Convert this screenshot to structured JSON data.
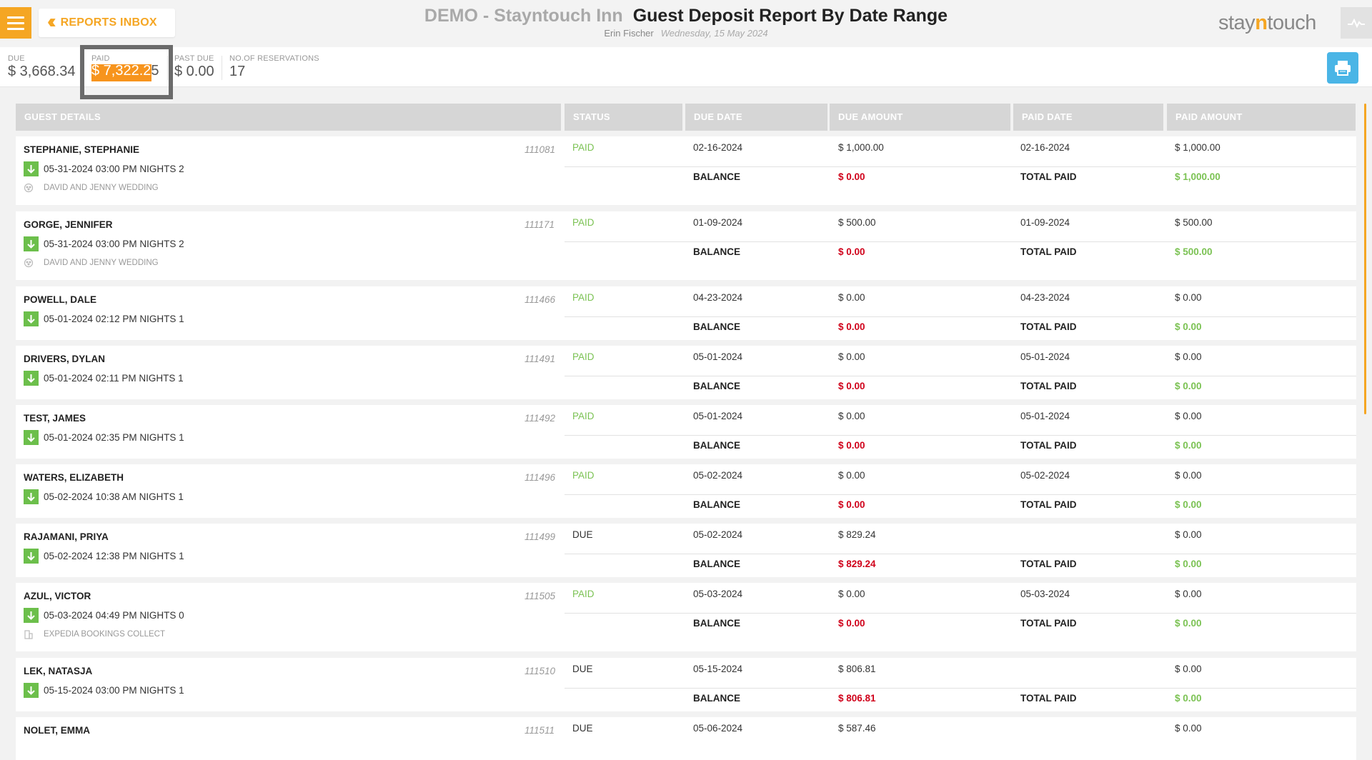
{
  "header": {
    "inbox_label": "REPORTS INBOX",
    "hotel_name": "DEMO - Stayntouch Inn",
    "report_title": "Guest Deposit Report By Date Range",
    "user": "Erin Fischer",
    "date": "Wednesday, 15 May 2024",
    "logo_a": "stay",
    "logo_b": "n",
    "logo_c": "touch"
  },
  "summary": {
    "due_label": "DUE",
    "due_value": "$ 3,668.34",
    "paid_label": "PAID",
    "paid_value": "$ 7,322.2",
    "paid_value_tail": "5",
    "past_due_label": "PAST DUE",
    "past_due_value": "$ 0.00",
    "reservations_label": "NO.OF RESERVATIONS",
    "reservations_value": "17"
  },
  "columns": [
    "GUEST DETAILS",
    "STATUS",
    "DUE DATE",
    "DUE AMOUNT",
    "PAID DATE",
    "PAID AMOUNT"
  ],
  "labels": {
    "balance": "BALANCE",
    "total_paid": "TOTAL PAID"
  },
  "rows": [
    {
      "name": "STEPHANIE, STEPHANIE",
      "conf": "111081",
      "arrival": "05-31-2024 03:00 PM NIGHTS 2",
      "group": "DAVID AND JENNY WEDDING",
      "group_icon": "group-icon",
      "status": "PAID",
      "due_date": "02-16-2024",
      "due_amount": "$ 1,000.00",
      "paid_date": "02-16-2024",
      "paid_amount": "$ 1,000.00",
      "balance": "$ 0.00",
      "total_paid": "$ 1,000.00"
    },
    {
      "name": "GORGE, JENNIFER",
      "conf": "111171",
      "arrival": "05-31-2024 03:00 PM NIGHTS 2",
      "group": "DAVID AND JENNY WEDDING",
      "group_icon": "group-icon",
      "status": "PAID",
      "due_date": "01-09-2024",
      "due_amount": "$ 500.00",
      "paid_date": "01-09-2024",
      "paid_amount": "$ 500.00",
      "balance": "$ 0.00",
      "total_paid": "$ 500.00"
    },
    {
      "name": "POWELL, DALE",
      "conf": "111466",
      "arrival": "05-01-2024 02:12 PM NIGHTS 1",
      "group": "",
      "status": "PAID",
      "due_date": "04-23-2024",
      "due_amount": "$ 0.00",
      "paid_date": "04-23-2024",
      "paid_amount": "$ 0.00",
      "balance": "$ 0.00",
      "total_paid": "$ 0.00"
    },
    {
      "name": "DRIVERS, DYLAN",
      "conf": "111491",
      "arrival": "05-01-2024 02:11 PM NIGHTS 1",
      "group": "",
      "status": "PAID",
      "due_date": "05-01-2024",
      "due_amount": "$ 0.00",
      "paid_date": "05-01-2024",
      "paid_amount": "$ 0.00",
      "balance": "$ 0.00",
      "total_paid": "$ 0.00"
    },
    {
      "name": "TEST, JAMES",
      "conf": "111492",
      "arrival": "05-01-2024 02:35 PM NIGHTS 1",
      "group": "",
      "status": "PAID",
      "due_date": "05-01-2024",
      "due_amount": "$ 0.00",
      "paid_date": "05-01-2024",
      "paid_amount": "$ 0.00",
      "balance": "$ 0.00",
      "total_paid": "$ 0.00"
    },
    {
      "name": "WATERS, ELIZABETH",
      "conf": "111496",
      "arrival": "05-02-2024 10:38 AM NIGHTS 1",
      "group": "",
      "status": "PAID",
      "due_date": "05-02-2024",
      "due_amount": "$ 0.00",
      "paid_date": "05-02-2024",
      "paid_amount": "$ 0.00",
      "balance": "$ 0.00",
      "total_paid": "$ 0.00"
    },
    {
      "name": "RAJAMANI, PRIYA",
      "conf": "111499",
      "arrival": "05-02-2024 12:38 PM NIGHTS 1",
      "group": "",
      "status": "DUE",
      "due_date": "05-02-2024",
      "due_amount": "$ 829.24",
      "paid_date": "",
      "paid_amount": "$ 0.00",
      "balance": "$ 829.24",
      "total_paid": "$ 0.00"
    },
    {
      "name": "AZUL, VICTOR",
      "conf": "111505",
      "arrival": "05-03-2024 04:49 PM NIGHTS 0",
      "group": "EXPEDIA BOOKINGS COLLECT",
      "group_icon": "building-icon",
      "status": "PAID",
      "due_date": "05-03-2024",
      "due_amount": "$ 0.00",
      "paid_date": "05-03-2024",
      "paid_amount": "$ 0.00",
      "balance": "$ 0.00",
      "total_paid": "$ 0.00"
    },
    {
      "name": "LEK, NATASJA",
      "conf": "111510",
      "arrival": "05-15-2024 03:00 PM NIGHTS 1",
      "group": "",
      "status": "DUE",
      "due_date": "05-15-2024",
      "due_amount": "$ 806.81",
      "paid_date": "",
      "paid_amount": "$ 0.00",
      "balance": "$ 806.81",
      "total_paid": "$ 0.00"
    },
    {
      "name": "NOLET, EMMA",
      "conf": "111511",
      "arrival": "",
      "group": "",
      "status": "DUE",
      "due_date": "05-06-2024",
      "due_amount": "$ 587.46",
      "paid_date": "",
      "paid_amount": "$ 0.00",
      "balance": "",
      "total_paid": ""
    }
  ]
}
